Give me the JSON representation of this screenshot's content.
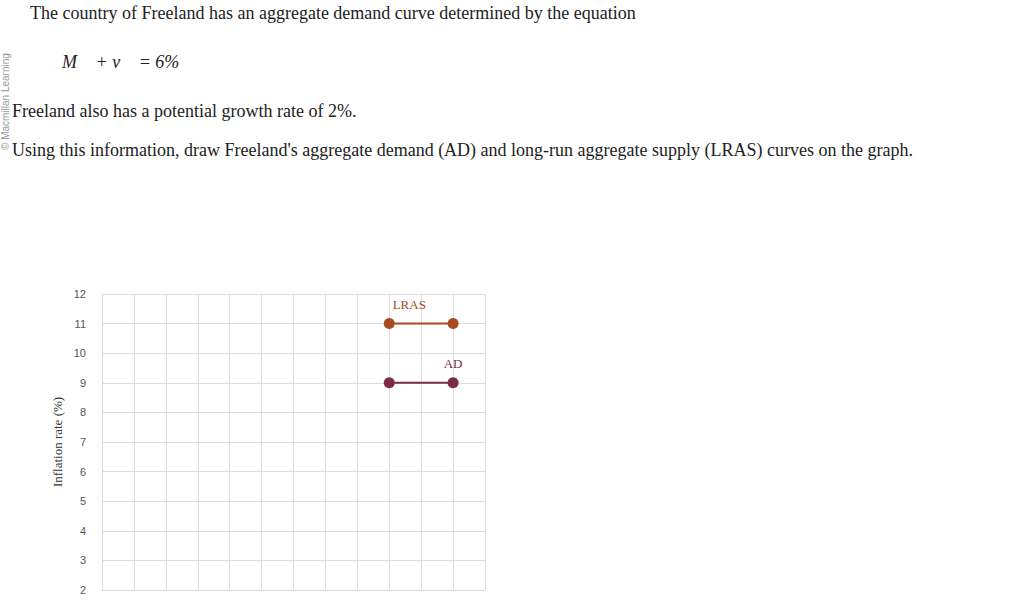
{
  "header": {
    "question": "The country of Freeland has an aggregate demand curve determined by the equation",
    "equation": "M⃗ + v⃗ = 6%",
    "given": "Freeland also has a potential growth rate of 2%.",
    "instruction": "Using this information, draw Freeland's aggregate demand (AD) and long-run aggregate supply (LRAS) curves on the graph.",
    "credit": "© Macmillan Learning"
  },
  "chart_data": {
    "type": "line",
    "y_label": "Inflation rate (%)",
    "series": [
      {
        "name": "LRAS",
        "color": "#a64b22",
        "marker": "circle",
        "x": [
          9,
          11
        ],
        "values": [
          11,
          11
        ]
      },
      {
        "name": "AD",
        "color": "#7a2d48",
        "marker": "circle",
        "x": [
          9,
          11
        ],
        "values": [
          9,
          9
        ]
      }
    ],
    "xlim": [
      0,
      12
    ],
    "xticks": [
      0,
      1,
      2,
      3,
      4,
      5,
      6,
      7,
      8,
      9,
      10,
      11,
      12
    ],
    "ylim": [
      2,
      12
    ],
    "yticks": [
      2,
      3,
      4,
      5,
      6,
      7,
      8,
      9,
      10,
      11,
      12
    ],
    "grid": true,
    "tick_labels": "y"
  }
}
